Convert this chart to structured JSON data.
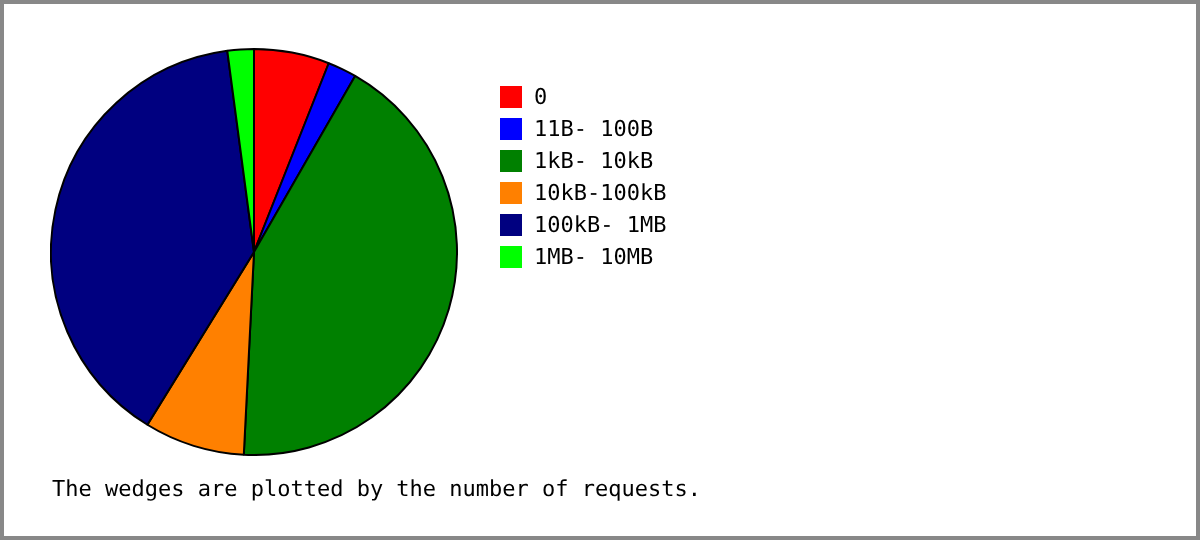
{
  "chart_data": {
    "type": "pie",
    "categories": [
      "0",
      "11B- 100B",
      "1kB- 10kB",
      "10kB-100kB",
      "100kB- 1MB",
      "1MB- 10MB"
    ],
    "values": [
      6.0,
      2.3,
      42.5,
      8.0,
      39.1,
      2.1
    ],
    "colors": [
      "#ff0000",
      "#0000ff",
      "#008000",
      "#ff8000",
      "#000080",
      "#00ff00"
    ],
    "legend": "right",
    "annotations": [
      "The wedges are plotted by the number of requests."
    ]
  }
}
